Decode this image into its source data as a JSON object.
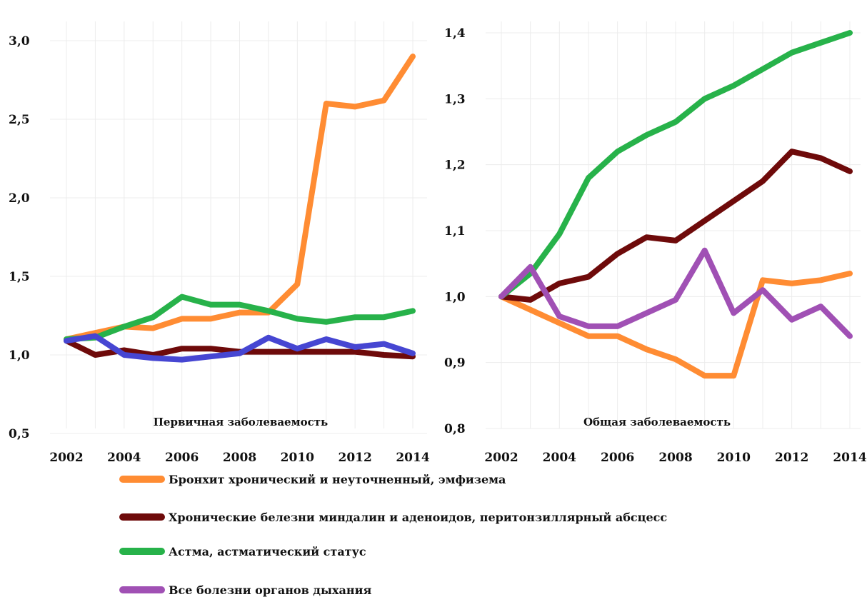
{
  "chart_data": [
    {
      "type": "line",
      "title": "Первичная заболеваемость",
      "x": [
        2002,
        2003,
        2004,
        2005,
        2006,
        2007,
        2008,
        2009,
        2010,
        2011,
        2012,
        2013,
        2014
      ],
      "x_tick_labels": [
        "2002",
        "2004",
        "2006",
        "2008",
        "2010",
        "2012",
        "2014"
      ],
      "y_tick_labels": [
        "0,5",
        "1,0",
        "1,5",
        "2,0",
        "2,5",
        "3,0"
      ],
      "ylim": [
        0.5,
        3.0
      ],
      "grid": true,
      "series": [
        {
          "name": "Бронхит хронический и неуточненный, эмфизема",
          "color": "#ff8c33",
          "values": [
            1.1,
            1.14,
            1.18,
            1.17,
            1.23,
            1.23,
            1.27,
            1.27,
            1.45,
            2.6,
            2.58,
            2.62,
            2.9
          ]
        },
        {
          "name": "Хронические белезни миндалин и аденоидов, перитонзиллярный абсцесс",
          "color": "#6e0a0a",
          "values": [
            1.09,
            1.0,
            1.03,
            1.0,
            1.04,
            1.04,
            1.02,
            1.02,
            1.02,
            1.02,
            1.02,
            1.0,
            0.99
          ]
        },
        {
          "name": "Астма, астматический статус",
          "color": "#27b24a",
          "values": [
            1.1,
            1.11,
            1.18,
            1.24,
            1.37,
            1.32,
            1.32,
            1.28,
            1.23,
            1.21,
            1.24,
            1.24,
            1.28
          ]
        },
        {
          "name": "",
          "color": "#4646d2",
          "values": [
            1.09,
            1.12,
            1.0,
            0.98,
            0.97,
            0.99,
            1.01,
            1.11,
            1.04,
            1.1,
            1.05,
            1.07,
            1.01
          ]
        }
      ]
    },
    {
      "type": "line",
      "title": "Общая заболеваемость",
      "x": [
        2002,
        2003,
        2004,
        2005,
        2006,
        2007,
        2008,
        2009,
        2010,
        2011,
        2012,
        2013,
        2014
      ],
      "x_tick_labels": [
        "2002",
        "2004",
        "2006",
        "2008",
        "2010",
        "2012",
        "2014"
      ],
      "y_tick_labels": [
        "0,8",
        "0,9",
        "1,0",
        "1,1",
        "1,2",
        "1,3",
        "1,4"
      ],
      "ylim": [
        0.8,
        1.4
      ],
      "grid": true,
      "series": [
        {
          "name": "Бронхит хронический и неуточненный, эмфизема",
          "color": "#ff8c33",
          "values": [
            1.0,
            0.98,
            0.96,
            0.94,
            0.94,
            0.92,
            0.905,
            0.88,
            0.88,
            1.025,
            1.02,
            1.025,
            1.035
          ]
        },
        {
          "name": "Хронические белезни миндалин и аденоидов, перитонзиллярный абсцесс",
          "color": "#6e0a0a",
          "values": [
            1.0,
            0.995,
            1.02,
            1.03,
            1.065,
            1.09,
            1.085,
            1.115,
            1.145,
            1.175,
            1.22,
            1.21,
            1.19
          ]
        },
        {
          "name": "Астма, астматический статус",
          "color": "#27b24a",
          "values": [
            1.0,
            1.035,
            1.095,
            1.18,
            1.22,
            1.245,
            1.265,
            1.3,
            1.32,
            1.345,
            1.37,
            1.385,
            1.4
          ]
        },
        {
          "name": "Все болезни органов дыхания",
          "color": "#a050b4",
          "values": [
            1.0,
            1.045,
            0.97,
            0.955,
            0.955,
            0.975,
            0.995,
            1.07,
            0.975,
            1.01,
            0.965,
            0.985,
            0.94
          ]
        }
      ]
    }
  ],
  "legend": [
    {
      "label": "Бронхит хронический и неуточненный, эмфизема",
      "color": "#ff8c33"
    },
    {
      "label": "Хронические белезни миндалин и аденоидов, перитонзиллярный абсцесс",
      "color": "#6e0a0a"
    },
    {
      "label": "Астма, астматический статус",
      "color": "#27b24a"
    },
    {
      "label": "Все болезни органов дыхания",
      "color": "#a050b4"
    }
  ]
}
